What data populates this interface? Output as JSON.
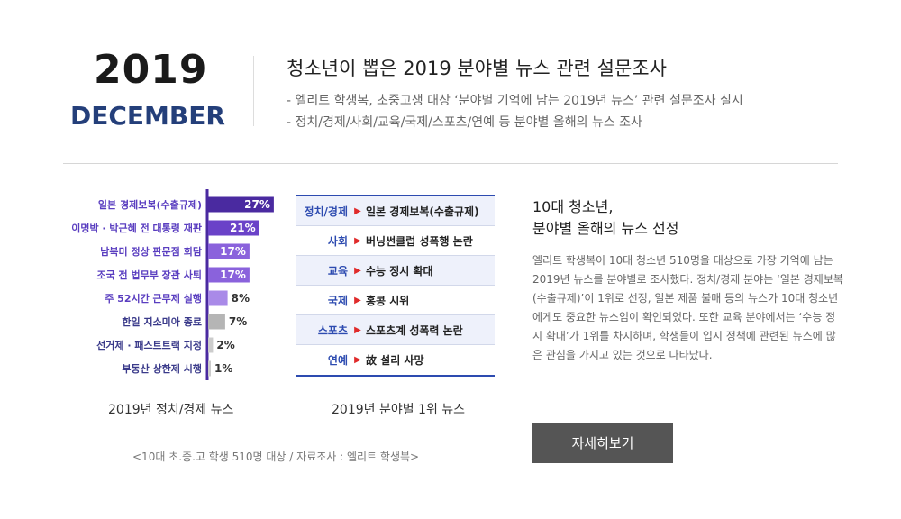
{
  "header": {
    "year": "2019",
    "month": "DECEMBER",
    "title": "청소년이 뽑은 2019 분야별 뉴스 관련 설문조사",
    "bullets": [
      "-  엘리트 학생복, 초중고생 대상 ‘분야별 기억에 남는 2019년 뉴스’ 관련 설문조사 실시",
      "-  정치/경제/사회/교육/국제/스포츠/연예 등 분야별 올해의 뉴스 조사"
    ]
  },
  "chart_data": {
    "type": "bar",
    "orientation": "horizontal",
    "title": "2019년 정치/경제 뉴스",
    "categories": [
      "일본 경제보복(수출규제)",
      "이명박 · 박근혜 전 대통령 재판",
      "남북미 정상 판문점 회담",
      "조국 전 법무부 장관 사퇴",
      "주 52시간 근무제 실행",
      "한일 지소미아 종료",
      "선거제 · 패스트트랙 지정",
      "부동산 상한제 시행"
    ],
    "values": [
      27,
      21,
      17,
      17,
      8,
      7,
      2,
      1
    ],
    "value_labels": [
      "27%",
      "21%",
      "17%",
      "17%",
      "8%",
      "7%",
      "2%",
      "1%"
    ],
    "unit": "%",
    "colors": [
      "#4a2aa0",
      "#6a42c8",
      "#8a62dc",
      "#8a62dc",
      "#a98ae8",
      "#b5b5b5",
      "#cccccc",
      "#cccccc"
    ]
  },
  "middle": {
    "caption": "2019년 분야별 1위 뉴스",
    "rows": [
      {
        "category": "정치/경제",
        "news": "일본 경제보복(수출규제)"
      },
      {
        "category": "사회",
        "news": "버닝썬클럽 성폭행 논란"
      },
      {
        "category": "교육",
        "news": "수능 정시 확대"
      },
      {
        "category": "국제",
        "news": "홍콩 시위"
      },
      {
        "category": "스포츠",
        "news": "스포츠계 성폭력 논란"
      },
      {
        "category": "연예",
        "news": "故 설리 사망"
      }
    ]
  },
  "right": {
    "title_line1": "10대 청소년,",
    "title_line2": "분야별 올해의 뉴스 선정",
    "body": "엘리트 학생복이 10대 청소년 510명을 대상으로 가장 기억에 남는 2019년 뉴스를 분야별로 조사했다. 정치/경제 분야는 ‘일본 경제보복(수출규제)’이 1위로 선정, 일본 제품 불매 등의 뉴스가 10대 청소년에게도 중요한 뉴스임이 확인되었다. 또한 교육 분야에서는 ‘수능 정시 확대’가 1위를 차지하며, 학생들이 입시 정책에 관련된 뉴스에 많은 관심을 가지고 있는 것으로 나타났다.",
    "button": "자세히보기"
  },
  "source": "<10대 초.중.고 학생 510명 대상 / 자료조사 : 엘리트 학생복>",
  "colors": {
    "accent_navy": "#243f7a",
    "table_blue": "#2d4bb0",
    "arrow_red": "#e02a2a",
    "button_gray": "#555555"
  }
}
